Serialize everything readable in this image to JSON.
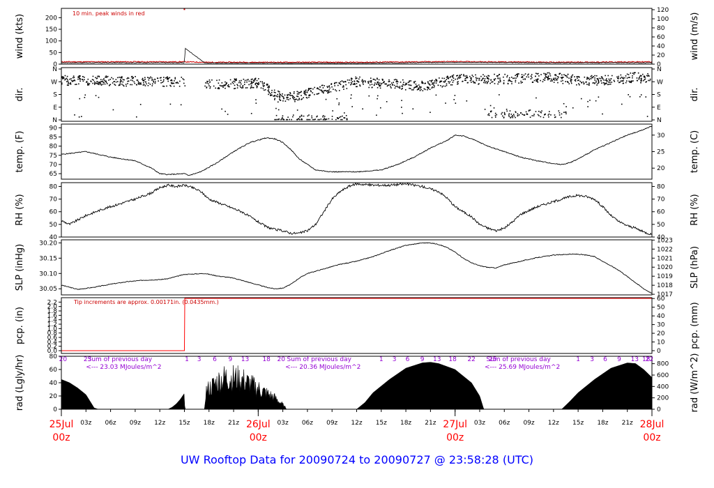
{
  "footer_title": "UW Rooftop Data for 20090724  to  20090727 @ 23:58:28  (UTC)",
  "colors": {
    "red": "#ff0000",
    "darkred": "#cc0000",
    "purple": "#9400d3",
    "blue": "#0000ff"
  },
  "chart_data": [
    {
      "type": "line",
      "id": "wind",
      "ylabel_left": "wind (kts)",
      "ylabel_right": "wind (m/s)",
      "ylim_left": [
        0,
        240
      ],
      "left_ticks": [
        0,
        50,
        100,
        150,
        200
      ],
      "ylim_right": [
        0,
        123
      ],
      "right_ticks": [
        0,
        20,
        40,
        60,
        80,
        100,
        120
      ],
      "annotation": "10 min. peak winds in red",
      "series": [
        {
          "role": "mean",
          "points": [
            [
              0,
              6
            ],
            [
              15,
              6
            ],
            [
              15.1,
              68
            ],
            [
              17.5,
              5
            ],
            [
              24,
              5
            ],
            [
              36,
              4
            ],
            [
              48,
              8
            ],
            [
              60,
              6
            ],
            [
              72,
              6
            ]
          ]
        },
        {
          "role": "peak",
          "points": [
            [
              0,
              10
            ],
            [
              15,
              10
            ],
            [
              17.5,
              8
            ],
            [
              36,
              8
            ],
            [
              48,
              11
            ],
            [
              60,
              8
            ],
            [
              72,
              10
            ]
          ]
        }
      ]
    },
    {
      "type": "scatter",
      "id": "dir",
      "ylabel_left": "dir.",
      "ylabel_right": "dir.",
      "ylim": [
        0,
        360
      ],
      "tick_values": [
        0,
        90,
        180,
        270,
        360
      ],
      "left_ticks": [
        "N",
        "E",
        "S",
        "W",
        "N"
      ],
      "right_ticks": [
        "N",
        "E",
        "S",
        "W",
        "N"
      ],
      "direction_trend": [
        [
          0,
          280
        ],
        [
          12,
          270
        ],
        [
          15,
          270
        ],
        [
          18,
          250
        ],
        [
          24,
          260
        ],
        [
          27,
          150
        ],
        [
          31,
          200
        ],
        [
          36,
          270
        ],
        [
          44,
          240
        ],
        [
          48,
          285
        ],
        [
          55,
          290
        ],
        [
          60,
          300
        ],
        [
          63,
          280
        ],
        [
          66,
          280
        ],
        [
          70,
          300
        ],
        [
          72,
          290
        ]
      ],
      "northerly_segments": [
        [
          26,
          35,
          10
        ],
        [
          52,
          62,
          40
        ]
      ]
    },
    {
      "type": "line",
      "id": "temp",
      "ylabel_left": "temp. (F)",
      "ylabel_right": "temp. (C)",
      "ylim_left": [
        62,
        92
      ],
      "left_ticks": [
        65,
        70,
        75,
        80,
        85,
        90
      ],
      "right_ticks": [
        20,
        25,
        30
      ],
      "points": [
        [
          0,
          75.5
        ],
        [
          3,
          77
        ],
        [
          6,
          74
        ],
        [
          9,
          72
        ],
        [
          11,
          68
        ],
        [
          12,
          65
        ],
        [
          13,
          64.5
        ],
        [
          15,
          65
        ],
        [
          15.5,
          64
        ],
        [
          17,
          66
        ],
        [
          19,
          71
        ],
        [
          21,
          77
        ],
        [
          23,
          82
        ],
        [
          25,
          84.5
        ],
        [
          26,
          84
        ],
        [
          27,
          82
        ],
        [
          28,
          78
        ],
        [
          29,
          73
        ],
        [
          30,
          70
        ],
        [
          31,
          67
        ],
        [
          33,
          66
        ],
        [
          36,
          66
        ],
        [
          39,
          67
        ],
        [
          41,
          70
        ],
        [
          43,
          74
        ],
        [
          45,
          79
        ],
        [
          47,
          83
        ],
        [
          48,
          86
        ],
        [
          49,
          85.5
        ],
        [
          50,
          84
        ],
        [
          52,
          80
        ],
        [
          54,
          77
        ],
        [
          56,
          74
        ],
        [
          58,
          72
        ],
        [
          60,
          70.5
        ],
        [
          61,
          70
        ],
        [
          62,
          71
        ],
        [
          63,
          73
        ],
        [
          65,
          78
        ],
        [
          67,
          82
        ],
        [
          69,
          86
        ],
        [
          71,
          89
        ],
        [
          72,
          91
        ]
      ]
    },
    {
      "type": "line",
      "id": "rh",
      "ylabel_left": "RH (%)",
      "ylabel_right": "RH (%)",
      "ylim": [
        40,
        83
      ],
      "left_ticks": [
        40,
        50,
        60,
        70,
        80
      ],
      "right_ticks": [
        40,
        50,
        60,
        70,
        80
      ],
      "points": [
        [
          0,
          53
        ],
        [
          1,
          50
        ],
        [
          3,
          57
        ],
        [
          5,
          62
        ],
        [
          7,
          66
        ],
        [
          9,
          70
        ],
        [
          11,
          75
        ],
        [
          12,
          79
        ],
        [
          13,
          81
        ],
        [
          14,
          80
        ],
        [
          15,
          81
        ],
        [
          16,
          79
        ],
        [
          17,
          76
        ],
        [
          18,
          70
        ],
        [
          20,
          65
        ],
        [
          22,
          60
        ],
        [
          24,
          52
        ],
        [
          25,
          48
        ],
        [
          26,
          46
        ],
        [
          27,
          45
        ],
        [
          28,
          43
        ],
        [
          29,
          43
        ],
        [
          30,
          45
        ],
        [
          31,
          50
        ],
        [
          32,
          60
        ],
        [
          33,
          70
        ],
        [
          34,
          76
        ],
        [
          35,
          80
        ],
        [
          36,
          82
        ],
        [
          38,
          81
        ],
        [
          40,
          81
        ],
        [
          42,
          82
        ],
        [
          44,
          80
        ],
        [
          46,
          76
        ],
        [
          47,
          71
        ],
        [
          48,
          64
        ],
        [
          50,
          56
        ],
        [
          51,
          50
        ],
        [
          52,
          47
        ],
        [
          53,
          45
        ],
        [
          54,
          47
        ],
        [
          55,
          52
        ],
        [
          56,
          58
        ],
        [
          58,
          64
        ],
        [
          60,
          68
        ],
        [
          62,
          72
        ],
        [
          63,
          73
        ],
        [
          64,
          72
        ],
        [
          65,
          70
        ],
        [
          66,
          64
        ],
        [
          67,
          57
        ],
        [
          68,
          52
        ],
        [
          69,
          49
        ],
        [
          70,
          47
        ],
        [
          71,
          44
        ],
        [
          72,
          42
        ]
      ]
    },
    {
      "type": "line",
      "id": "slp",
      "ylabel_left": "SLP (inHg)",
      "ylabel_right": "SLP (hPa)",
      "ylim_left": [
        30.03,
        30.21
      ],
      "left_ticks": [
        30.05,
        30.1,
        30.15,
        30.2
      ],
      "right_ticks": [
        1017,
        1018,
        1019,
        1020,
        1021,
        1022,
        1023
      ],
      "points": [
        [
          0,
          30.062
        ],
        [
          2,
          30.048
        ],
        [
          4,
          30.055
        ],
        [
          6,
          30.065
        ],
        [
          8,
          30.073
        ],
        [
          10,
          30.078
        ],
        [
          12,
          30.08
        ],
        [
          13,
          30.083
        ],
        [
          14,
          30.09
        ],
        [
          15,
          30.097
        ],
        [
          17.5,
          30.1
        ],
        [
          19,
          30.092
        ],
        [
          21,
          30.085
        ],
        [
          23,
          30.07
        ],
        [
          25,
          30.055
        ],
        [
          26,
          30.05
        ],
        [
          27,
          30.052
        ],
        [
          28,
          30.065
        ],
        [
          29,
          30.085
        ],
        [
          30,
          30.1
        ],
        [
          32,
          30.115
        ],
        [
          34,
          30.13
        ],
        [
          36,
          30.14
        ],
        [
          38,
          30.155
        ],
        [
          40,
          30.175
        ],
        [
          42,
          30.192
        ],
        [
          44,
          30.2
        ],
        [
          45,
          30.2
        ],
        [
          46,
          30.195
        ],
        [
          47,
          30.185
        ],
        [
          48,
          30.17
        ],
        [
          49,
          30.15
        ],
        [
          50,
          30.135
        ],
        [
          51,
          30.125
        ],
        [
          52,
          30.12
        ],
        [
          53,
          30.118
        ],
        [
          54,
          30.128
        ],
        [
          56,
          30.14
        ],
        [
          58,
          30.152
        ],
        [
          60,
          30.16
        ],
        [
          62,
          30.163
        ],
        [
          63,
          30.163
        ],
        [
          64,
          30.16
        ],
        [
          65,
          30.155
        ],
        [
          66,
          30.14
        ],
        [
          67,
          30.125
        ],
        [
          68,
          30.11
        ],
        [
          69,
          30.09
        ],
        [
          70,
          30.07
        ],
        [
          71,
          30.05
        ],
        [
          72,
          30.035
        ]
      ]
    },
    {
      "type": "line",
      "id": "pcp",
      "ylabel_left": "pcp. (in)",
      "ylabel_right": "pcp. (mm)",
      "ylim_left": [
        0,
        2.4
      ],
      "left_ticks": [
        0.0,
        0.5,
        1.0,
        1.5,
        2.0
      ],
      "left_tick_labels": [
        "0.0",
        "0.2",
        "0.4",
        "0.6",
        "0.8",
        "1.0",
        "1.2",
        "1.4",
        "1.6",
        "1.8",
        "2.0",
        "2.2"
      ],
      "right_ticks": [
        0,
        10,
        20,
        30,
        40,
        50,
        60
      ],
      "annotation": "Tip increments are approx. 0.00171in. (0.0435mm.)",
      "points": [
        [
          0,
          0
        ],
        [
          15,
          0
        ],
        [
          15.05,
          2.37
        ],
        [
          72,
          2.37
        ]
      ]
    },
    {
      "type": "area",
      "id": "rad",
      "ylabel_left": "rad (Lgly/hr)",
      "ylabel_right": "rad (W/m^2)",
      "ylim_left": [
        0,
        80
      ],
      "left_ticks": [
        0,
        20,
        40,
        60,
        80
      ],
      "right_ticks": [
        0,
        200,
        400,
        600,
        800
      ],
      "day_sums": [
        {
          "label": "Sum of previous day",
          "value": "<--- 23.03 MJoules/m^2"
        },
        {
          "label": "Sum of previous day",
          "value": "<--- 20.36 MJoules/m^2"
        },
        {
          "label": "Sum of previous day",
          "value": "<--- 25.69 MJoules/m^2"
        }
      ],
      "local_hour_labels": [
        {
          "day": 0,
          "labels": [
            "20",
            "23"
          ]
        },
        {
          "day": 1,
          "labels": [
            "1",
            "3",
            "6",
            "9",
            "13",
            "18",
            "20"
          ]
        },
        {
          "day": 2,
          "labels": [
            "1",
            "3",
            "6",
            "9",
            "13",
            "18",
            "22",
            "25"
          ]
        },
        {
          "day": 3,
          "labels": [
            "1",
            "3",
            "6",
            "9",
            "13",
            "18",
            "22"
          ]
        }
      ],
      "points": [
        [
          0,
          45
        ],
        [
          1,
          40
        ],
        [
          2,
          32
        ],
        [
          3,
          22
        ],
        [
          3.5,
          12
        ],
        [
          4,
          2
        ],
        [
          4.5,
          0
        ],
        [
          13,
          0
        ],
        [
          13.5,
          3
        ],
        [
          14,
          8
        ],
        [
          14.5,
          15
        ],
        [
          15,
          24
        ],
        [
          15.05,
          0
        ],
        [
          17.5,
          0
        ],
        [
          17.55,
          38
        ],
        [
          19,
          60
        ],
        [
          20,
          70
        ],
        [
          21,
          68
        ],
        [
          22,
          65
        ],
        [
          23,
          55
        ],
        [
          24,
          45
        ],
        [
          25,
          35
        ],
        [
          26,
          25
        ],
        [
          27,
          10
        ],
        [
          27.5,
          0
        ],
        [
          36,
          0
        ],
        [
          37,
          10
        ],
        [
          38,
          25
        ],
        [
          40,
          45
        ],
        [
          42,
          62
        ],
        [
          44,
          70
        ],
        [
          45,
          71
        ],
        [
          46,
          69
        ],
        [
          48,
          60
        ],
        [
          50,
          40
        ],
        [
          51,
          20
        ],
        [
          51.5,
          0
        ],
        [
          61,
          0
        ],
        [
          62,
          12
        ],
        [
          63,
          25
        ],
        [
          65,
          45
        ],
        [
          67,
          62
        ],
        [
          69,
          70
        ],
        [
          70,
          69
        ],
        [
          71,
          60
        ],
        [
          72,
          48
        ]
      ]
    }
  ],
  "x_axis": {
    "range_hours": [
      0,
      72
    ],
    "hour_ticks": [
      "03z",
      "06z",
      "09z",
      "12z",
      "15z",
      "18z",
      "21z"
    ],
    "day_labels": [
      {
        "hour": 0,
        "day": "25Jul",
        "time": "00z"
      },
      {
        "hour": 24,
        "day": "26Jul",
        "time": "00z"
      },
      {
        "hour": 48,
        "day": "27Jul",
        "time": "00z"
      },
      {
        "hour": 72,
        "day": "28Jul",
        "time": "00z"
      }
    ]
  }
}
